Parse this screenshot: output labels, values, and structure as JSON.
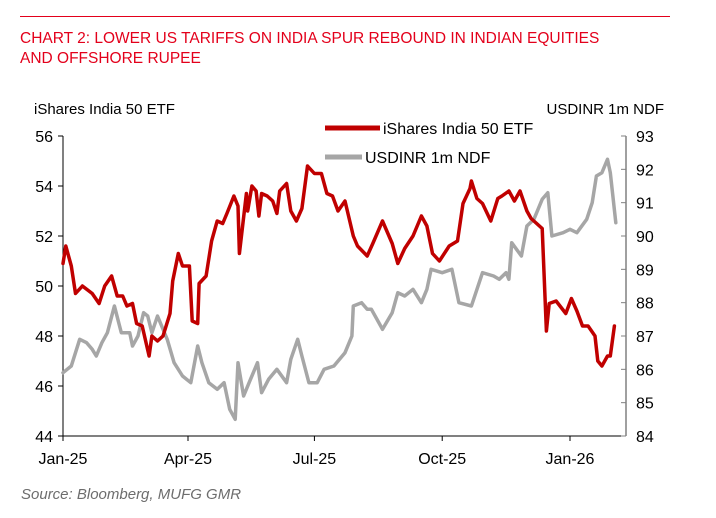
{
  "title_line1": "CHART 2: LOWER US TARIFFS ON INDIA SPUR REBOUND IN INDIAN EQUITIES",
  "title_line2": "AND OFFSHORE RUPEE",
  "source": "Source: Bloomberg, MUFG GMR",
  "colors": {
    "accent": "#e3001b",
    "etf": "#c00000",
    "ndf": "#a6a6a6"
  },
  "chart_data": {
    "type": "line",
    "title": "CHART 2: LOWER US TARIFFS ON INDIA SPUR REBOUND IN INDIAN EQUITIES AND OFFSHORE RUPEE",
    "ylabel_left": "iShares India  50 ETF",
    "ylabel_right": "USDINR 1m NDF",
    "ylim_left": [
      44,
      56
    ],
    "ylim_right": [
      84,
      93
    ],
    "yticks_left": [
      "44",
      "46",
      "48",
      "50",
      "52",
      "54",
      "56"
    ],
    "yticks_right": [
      "84",
      "85",
      "86",
      "87",
      "88",
      "89",
      "90",
      "91",
      "92",
      "93"
    ],
    "xticks": [
      {
        "date": "2025-01-01",
        "label": "Jan-25"
      },
      {
        "date": "2025-04-01",
        "label": "Apr-25"
      },
      {
        "date": "2025-07-01",
        "label": "Jul-25"
      },
      {
        "date": "2025-10-01",
        "label": "Oct-25"
      },
      {
        "date": "2026-01-01",
        "label": "Jan-26"
      }
    ],
    "grid": false,
    "legend": "top-center",
    "series": [
      {
        "name": "iShares India 50 ETF",
        "axis": "left",
        "color": "#c00000",
        "x": [
          "2025-01-01",
          "2025-01-03",
          "2025-01-07",
          "2025-01-10",
          "2025-01-15",
          "2025-01-22",
          "2025-01-27",
          "2025-01-31",
          "2025-02-05",
          "2025-02-09",
          "2025-02-13",
          "2025-02-16",
          "2025-02-20",
          "2025-02-23",
          "2025-02-27",
          "2025-03-04",
          "2025-03-06",
          "2025-03-10",
          "2025-03-14",
          "2025-03-19",
          "2025-03-21",
          "2025-03-25",
          "2025-03-28",
          "2025-04-02",
          "2025-04-04",
          "2025-04-08",
          "2025-04-09",
          "2025-04-14",
          "2025-04-18",
          "2025-04-22",
          "2025-04-26",
          "2025-04-29",
          "2025-05-04",
          "2025-05-07",
          "2025-05-08",
          "2025-05-13",
          "2025-05-14",
          "2025-05-17",
          "2025-05-20",
          "2025-05-22",
          "2025-05-24",
          "2025-05-28",
          "2025-06-01",
          "2025-06-04",
          "2025-06-06",
          "2025-06-11",
          "2025-06-14",
          "2025-06-18",
          "2025-06-22",
          "2025-06-26",
          "2025-07-01",
          "2025-07-06",
          "2025-07-10",
          "2025-07-14",
          "2025-07-18",
          "2025-07-23",
          "2025-07-29",
          "2025-08-01",
          "2025-08-08",
          "2025-08-12",
          "2025-08-19",
          "2025-08-26",
          "2025-08-30",
          "2025-09-04",
          "2025-09-10",
          "2025-09-16",
          "2025-09-20",
          "2025-09-24",
          "2025-09-29",
          "2025-10-06",
          "2025-10-12",
          "2025-10-16",
          "2025-10-21",
          "2025-10-22",
          "2025-10-26",
          "2025-10-30",
          "2025-11-05",
          "2025-11-10",
          "2025-11-13",
          "2025-11-18",
          "2025-11-22",
          "2025-11-26",
          "2025-12-01",
          "2025-12-04",
          "2025-12-12",
          "2025-12-15",
          "2025-12-17",
          "2025-12-22",
          "2025-12-29",
          "2026-01-02",
          "2026-01-06",
          "2026-01-10",
          "2026-01-14",
          "2026-01-19",
          "2026-01-21",
          "2026-01-24",
          "2026-01-28",
          "2026-01-30",
          "2026-02-02"
        ],
        "values": [
          50.9,
          51.6,
          50.8,
          49.7,
          50.0,
          49.7,
          49.3,
          50.0,
          50.4,
          49.6,
          49.6,
          49.2,
          49.3,
          48.5,
          48.4,
          47.2,
          48.0,
          47.8,
          48.0,
          48.9,
          50.2,
          51.3,
          50.8,
          50.8,
          48.6,
          48.5,
          50.1,
          50.4,
          51.8,
          52.6,
          52.5,
          52.9,
          53.6,
          53.2,
          51.3,
          53.7,
          53.0,
          54.0,
          53.8,
          52.8,
          53.7,
          53.6,
          53.4,
          52.9,
          53.8,
          54.1,
          53.0,
          52.6,
          53.1,
          54.8,
          54.5,
          54.5,
          53.7,
          53.6,
          53.0,
          53.4,
          52.0,
          51.6,
          51.2,
          51.7,
          52.6,
          51.7,
          50.9,
          51.5,
          52.0,
          52.8,
          52.4,
          51.3,
          51.0,
          51.6,
          51.8,
          53.3,
          53.9,
          54.2,
          53.5,
          53.3,
          52.6,
          53.5,
          53.6,
          53.8,
          53.4,
          53.8,
          53.0,
          52.7,
          52.3,
          48.2,
          49.3,
          49.4,
          48.9,
          49.5,
          49.0,
          48.4,
          48.4,
          48.0,
          47.0,
          46.8,
          47.2,
          47.2,
          48.4
        ]
      },
      {
        "name": "USDINR 1m NDF",
        "axis": "right",
        "color": "#a6a6a6",
        "x": [
          "2025-01-01",
          "2025-01-07",
          "2025-01-13",
          "2025-01-18",
          "2025-01-22",
          "2025-01-25",
          "2025-01-29",
          "2025-02-02",
          "2025-02-07",
          "2025-02-12",
          "2025-02-18",
          "2025-02-20",
          "2025-02-24",
          "2025-02-28",
          "2025-03-03",
          "2025-03-06",
          "2025-03-10",
          "2025-03-17",
          "2025-03-22",
          "2025-03-28",
          "2025-04-03",
          "2025-04-08",
          "2025-04-11",
          "2025-04-16",
          "2025-04-22",
          "2025-04-27",
          "2025-05-01",
          "2025-05-05",
          "2025-05-07",
          "2025-05-11",
          "2025-05-16",
          "2025-05-21",
          "2025-05-24",
          "2025-05-29",
          "2025-06-04",
          "2025-06-11",
          "2025-06-14",
          "2025-06-19",
          "2025-06-22",
          "2025-06-27",
          "2025-07-03",
          "2025-07-08",
          "2025-07-15",
          "2025-07-23",
          "2025-07-28",
          "2025-07-29",
          "2025-08-04",
          "2025-08-08",
          "2025-08-11",
          "2025-08-19",
          "2025-08-26",
          "2025-08-30",
          "2025-09-04",
          "2025-09-10",
          "2025-09-16",
          "2025-09-20",
          "2025-09-23",
          "2025-10-01",
          "2025-10-08",
          "2025-10-13",
          "2025-10-22",
          "2025-10-30",
          "2025-11-07",
          "2025-11-11",
          "2025-11-16",
          "2025-11-18",
          "2025-11-20",
          "2025-11-27",
          "2025-12-01",
          "2025-12-06",
          "2025-12-12",
          "2025-12-16",
          "2025-12-19",
          "2025-12-27",
          "2026-01-01",
          "2026-01-06",
          "2026-01-13",
          "2026-01-17",
          "2026-01-20",
          "2026-01-24",
          "2026-01-28",
          "2026-01-30",
          "2026-02-03"
        ],
        "values": [
          85.9,
          86.1,
          86.9,
          86.8,
          86.6,
          86.4,
          86.8,
          87.1,
          87.9,
          87.1,
          87.1,
          86.7,
          87.0,
          87.7,
          87.6,
          87.1,
          87.6,
          86.9,
          86.2,
          85.8,
          85.6,
          86.7,
          86.2,
          85.6,
          85.4,
          85.6,
          84.8,
          84.5,
          86.2,
          85.2,
          85.7,
          86.2,
          85.3,
          85.7,
          86.0,
          85.6,
          86.3,
          86.9,
          86.4,
          85.6,
          85.6,
          86.0,
          86.1,
          86.5,
          87.0,
          87.9,
          88.0,
          87.8,
          87.8,
          87.2,
          87.7,
          88.3,
          88.2,
          88.4,
          88.0,
          88.4,
          89.0,
          88.9,
          89.0,
          88.0,
          87.9,
          88.9,
          88.8,
          88.7,
          88.9,
          88.7,
          89.8,
          89.4,
          90.3,
          90.5,
          91.1,
          91.3,
          90.0,
          90.1,
          90.2,
          90.1,
          90.5,
          91.0,
          91.8,
          91.9,
          92.3,
          91.9,
          90.4
        ]
      }
    ]
  }
}
